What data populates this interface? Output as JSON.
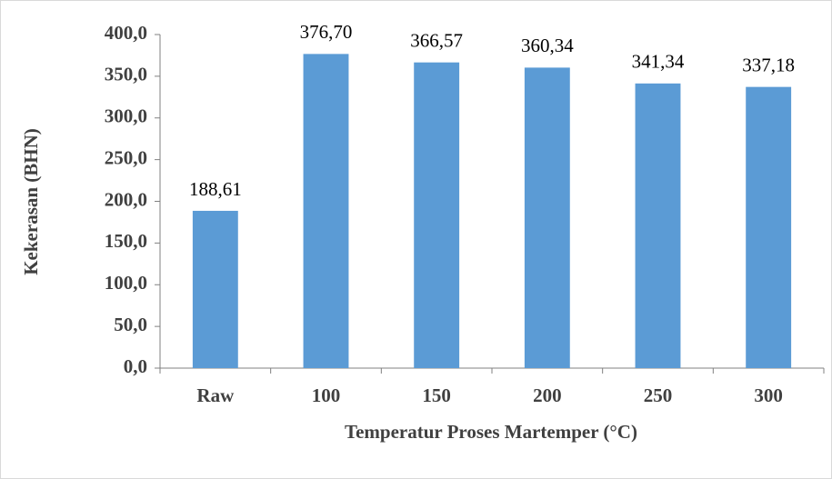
{
  "chart_data": {
    "type": "bar",
    "x_label": "Temperatur Proses Martemper (°C)",
    "y_label": "Kekerasan (BHN)",
    "categories": [
      "Raw",
      "100",
      "150",
      "200",
      "250",
      "300"
    ],
    "values": [
      188.61,
      376.7,
      366.57,
      360.34,
      341.34,
      337.18
    ],
    "value_labels": [
      "188,61",
      "376,70",
      "366,57",
      "360,34",
      "341,34",
      "337,18"
    ],
    "color": "#5b9bd5",
    "ylim": [
      0,
      400
    ],
    "yticks": [
      {
        "value": 0,
        "label": "0,0"
      },
      {
        "value": 50,
        "label": "50,0"
      },
      {
        "value": 100,
        "label": "100,0"
      },
      {
        "value": 150,
        "label": "150,0"
      },
      {
        "value": 200,
        "label": "200,0"
      },
      {
        "value": 250,
        "label": "250,0"
      },
      {
        "value": 300,
        "label": "300,0"
      },
      {
        "value": 350,
        "label": "350,0"
      },
      {
        "value": 400,
        "label": "400,0"
      }
    ],
    "grid": false
  }
}
